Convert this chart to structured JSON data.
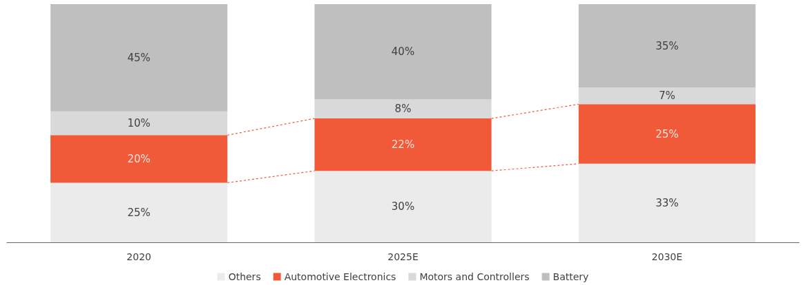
{
  "chart_data": {
    "type": "bar",
    "stacked": true,
    "categories": [
      "2020",
      "2025E",
      "2030E"
    ],
    "series": [
      {
        "name": "Others",
        "color": "#ebebeb",
        "values": [
          25,
          30,
          33
        ],
        "value_labels": [
          "25%",
          "30%",
          "33%"
        ]
      },
      {
        "name": "Automotive Electronics",
        "color": "#f05a38",
        "values": [
          20,
          22,
          25
        ],
        "value_labels": [
          "20%",
          "22%",
          "25%"
        ]
      },
      {
        "name": "Motors and Controllers",
        "color": "#d9d9d9",
        "values": [
          10,
          8,
          7
        ],
        "value_labels": [
          "10%",
          "8%",
          "7%"
        ]
      },
      {
        "name": "Battery",
        "color": "#bfbfbf",
        "values": [
          45,
          40,
          35
        ],
        "value_labels": [
          "45%",
          "40%",
          "35%"
        ]
      }
    ],
    "legend": "bottom"
  }
}
